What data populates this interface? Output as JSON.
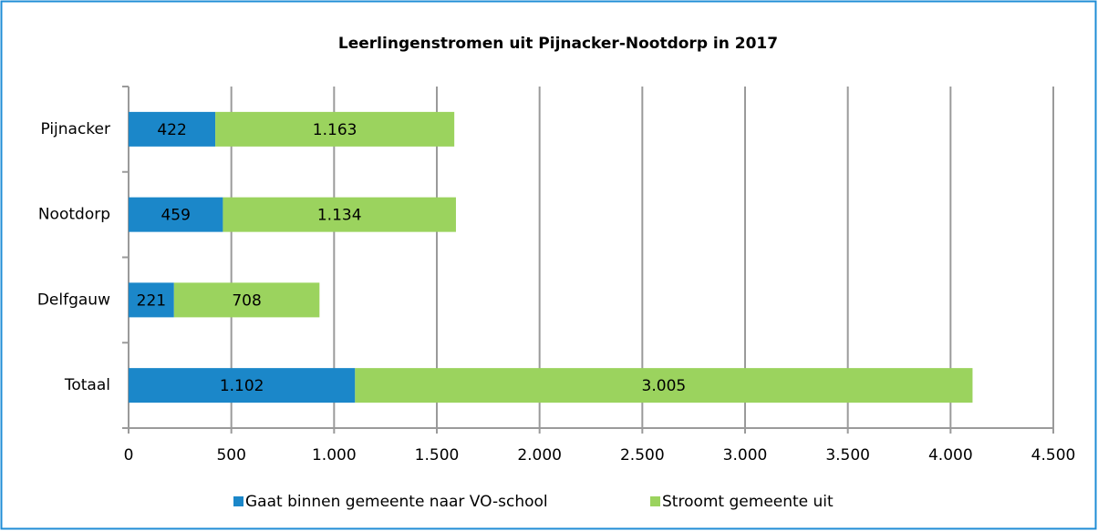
{
  "chart_data": {
    "type": "bar",
    "orientation": "horizontal",
    "stacked": true,
    "title": "Leerlingenstromen uit Pijnacker-Nootdorp in 2017",
    "categories": [
      "Pijnacker",
      "Nootdorp",
      "Delfgauw",
      "Totaal"
    ],
    "series": [
      {
        "name": "Gaat binnen gemeente naar VO-school",
        "color": "#1b87c9",
        "values": [
          422,
          459,
          221,
          1102
        ],
        "value_labels": [
          "422",
          "459",
          "221",
          "1.102"
        ]
      },
      {
        "name": "Stroomt gemeente uit",
        "color": "#9bd35e",
        "values": [
          1163,
          1134,
          708,
          3005
        ],
        "value_labels": [
          "1.163",
          "1.134",
          "708",
          "3.005"
        ]
      }
    ],
    "xlim": [
      0,
      4500
    ],
    "xticks": [
      0,
      500,
      {
        "value": 1000,
        "label": "1.000"
      },
      {
        "value": 1500,
        "label": "1.500"
      },
      {
        "value": 2000,
        "label": "2.000"
      },
      {
        "value": 2500,
        "label": "2.500"
      },
      {
        "value": 3000,
        "label": "3.000"
      },
      {
        "value": 3500,
        "label": "3.500"
      },
      {
        "value": 4000,
        "label": "4.000"
      },
      {
        "value": 4500,
        "label": "4.500"
      }
    ],
    "grid": true,
    "legend": "bottom"
  }
}
